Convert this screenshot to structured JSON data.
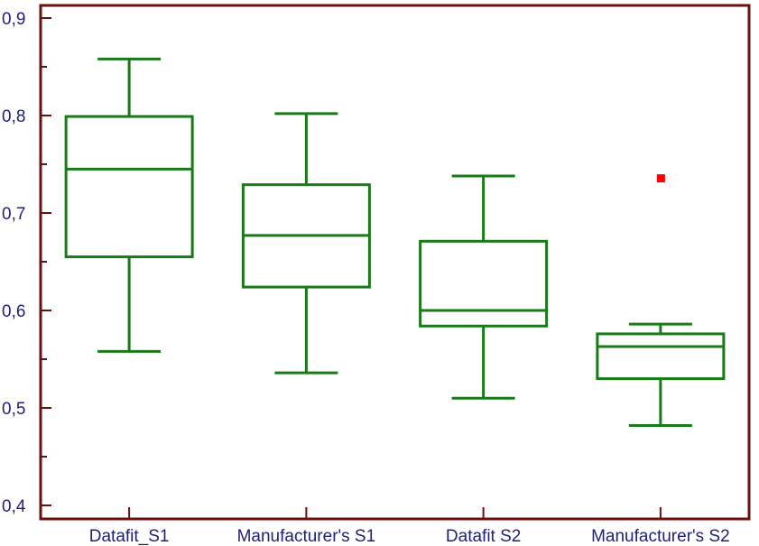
{
  "chart_data": {
    "type": "boxplot",
    "title": "",
    "xlabel": "",
    "ylabel": "",
    "ylim": [
      0.4,
      0.9
    ],
    "yticks": [
      0.4,
      0.5,
      0.6,
      0.7,
      0.8,
      0.9
    ],
    "ytick_labels": [
      "0,4",
      "0,5",
      "0,6",
      "0,7",
      "0,8",
      "0,9"
    ],
    "grid": false,
    "categories": [
      "Datafit_S1",
      "Manufacturer's S1",
      "Datafit S2",
      "Manufacturer's S2"
    ],
    "boxes": [
      {
        "category": "Datafit_S1",
        "whisker_low": 0.558,
        "q1": 0.655,
        "median": 0.745,
        "q3": 0.799,
        "whisker_high": 0.858,
        "outliers": []
      },
      {
        "category": "Manufacturer's S1",
        "whisker_low": 0.536,
        "q1": 0.624,
        "median": 0.677,
        "q3": 0.729,
        "whisker_high": 0.802,
        "outliers": []
      },
      {
        "category": "Datafit S2",
        "whisker_low": 0.51,
        "q1": 0.584,
        "median": 0.6,
        "q3": 0.671,
        "whisker_high": 0.738,
        "outliers": []
      },
      {
        "category": "Manufacturer's S2",
        "whisker_low": 0.482,
        "q1": 0.53,
        "median": 0.563,
        "q3": 0.576,
        "whisker_high": 0.586,
        "outliers": [
          0.736
        ]
      }
    ],
    "colors": {
      "box": "#1a7a1a",
      "outlier": "#ff0000",
      "axis": "#6b0f0f",
      "label": "#1f1f7a"
    }
  }
}
